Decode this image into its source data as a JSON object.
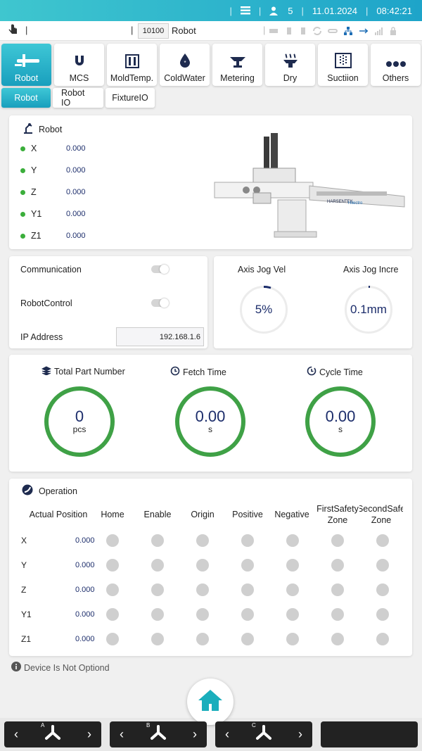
{
  "status": {
    "count": "5",
    "date": "11.01.2024",
    "time": "08:42:21"
  },
  "toolbar": {
    "code": "10100",
    "title": "Robot"
  },
  "tabs": [
    {
      "label": "Robot",
      "icon": "robot-arm-icon",
      "active": true
    },
    {
      "label": "MCS",
      "icon": "magnet-icon"
    },
    {
      "label": "MoldTemp.",
      "icon": "mold-temp-icon"
    },
    {
      "label": "ColdWater",
      "icon": "water-drop-icon"
    },
    {
      "label": "Metering",
      "icon": "metering-icon"
    },
    {
      "label": "Dry",
      "icon": "dryer-icon"
    },
    {
      "label": "Suctiion",
      "icon": "suction-icon"
    },
    {
      "label": "Others",
      "icon": "more-icon"
    }
  ],
  "subtabs": [
    "Robot",
    "Robot IO",
    "FixtureIO"
  ],
  "robot_card": {
    "title": "Robot",
    "axes": [
      {
        "name": "X",
        "value": "0.000"
      },
      {
        "name": "Y",
        "value": "0.000"
      },
      {
        "name": "Z",
        "value": "0.000"
      },
      {
        "name": "Y1",
        "value": "0.000"
      },
      {
        "name": "Z1",
        "value": "0.000"
      }
    ],
    "image_brand": "Hilectro",
    "image_brand2": "HARSENTEK"
  },
  "comm": {
    "communication_label": "Communication",
    "robotcontrol_label": "RobotControl",
    "ip_label": "IP Address",
    "ip_value": "192.168.1.6"
  },
  "jog": {
    "vel_label": "Axis Jog Vel",
    "vel_value": "5%",
    "incre_label": "Axis Jog Incre",
    "incre_value": "0.1mm"
  },
  "metrics": [
    {
      "title": "Total Part Number",
      "value": "0",
      "unit": "pcs",
      "icon": "layers-icon"
    },
    {
      "title": "Fetch Time",
      "value": "0.00",
      "unit": "s",
      "icon": "clock-icon"
    },
    {
      "title": "Cycle Time",
      "value": "0.00",
      "unit": "s",
      "icon": "cycle-clock-icon"
    }
  ],
  "operation": {
    "title": "Operation",
    "headers": [
      "Actual Position",
      "Home",
      "Enable",
      "Origin",
      "Positive",
      "Negative",
      "FirstSafety Zone",
      "SecondSafe Zone"
    ],
    "rows": [
      {
        "name": "X",
        "value": "0.000"
      },
      {
        "name": "Y",
        "value": "0.000"
      },
      {
        "name": "Z",
        "value": "0.000"
      },
      {
        "name": "Y1",
        "value": "0.000"
      },
      {
        "name": "Z1",
        "value": "0.000"
      }
    ]
  },
  "footnote": "Device Is Not Optiond",
  "bottom": [
    {
      "letter": "A"
    },
    {
      "letter": "B"
    },
    {
      "letter": "C"
    }
  ],
  "colors": {
    "accent": "#1ea4c9",
    "ok_green": "#3fa146",
    "value_blue": "#1c2d6b"
  }
}
